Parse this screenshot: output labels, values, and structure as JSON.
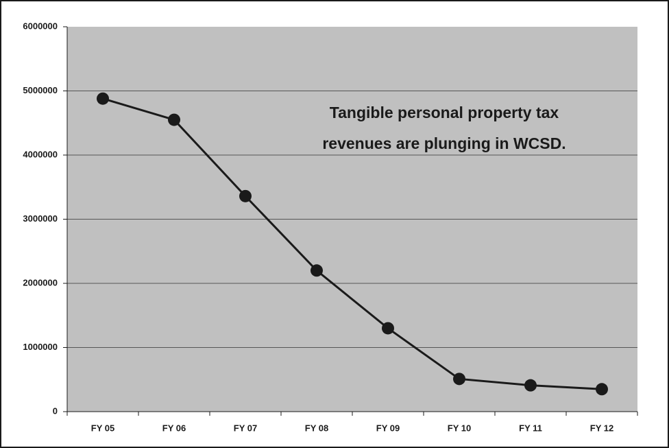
{
  "chart_data": {
    "type": "line",
    "annotation": [
      "Tangible personal property tax",
      "revenues are plunging in WCSD."
    ],
    "categories": [
      "FY 05",
      "FY 06",
      "FY 07",
      "FY 08",
      "FY 09",
      "FY 10",
      "FY 11",
      "FY 12"
    ],
    "values": [
      4880000,
      4550000,
      3360000,
      2200000,
      1300000,
      510000,
      410000,
      350000
    ],
    "color": "#1a1a1a",
    "ylim": [
      0,
      6000000
    ],
    "yticks": [
      0,
      1000000,
      2000000,
      3000000,
      4000000,
      5000000,
      6000000
    ],
    "grid": true
  }
}
